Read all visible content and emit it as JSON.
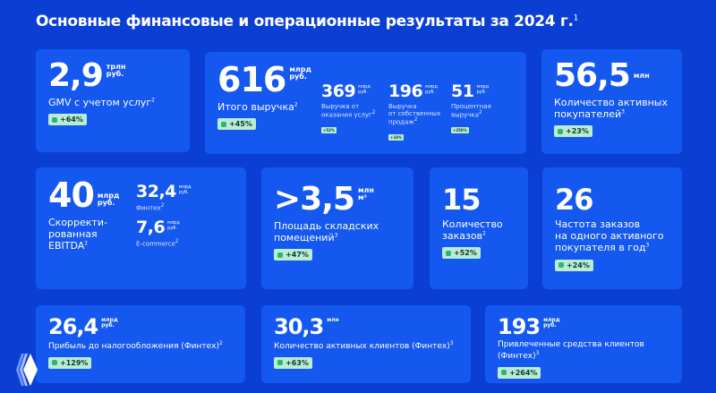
{
  "title": "Основные финансовые и операционные результаты за 2024 г.",
  "title_note": "1",
  "colors": {
    "background": "#0b3fd4",
    "card": "#1458f0",
    "badge": "#b9ecd4",
    "badge_icon": "#2fb56e"
  },
  "cards": [
    {
      "value": "2,9",
      "unit1": "трлн",
      "unit2": "руб.",
      "label": "GMV с учетом услуг",
      "note": "2",
      "badge": "+64%"
    },
    {
      "value": "616",
      "unit1": "млрд",
      "unit2": "руб.",
      "label": "Итого выручка",
      "note": "2",
      "badge": "+45%",
      "subs": [
        {
          "value": "369",
          "unit1": "млрд",
          "unit2": "руб.",
          "label1": "Выручка от",
          "label2": "оказания услуг",
          "note": "2",
          "badge": "+52%"
        },
        {
          "value": "196",
          "unit1": "млрд",
          "unit2": "руб.",
          "label1": "Выручка",
          "label2": "от собственных",
          "label3": "продаж",
          "note": "2",
          "badge": "+18%"
        },
        {
          "value": "51",
          "unit1": "млрд",
          "unit2": "руб.",
          "label1": "Процентная",
          "label2": "выручка",
          "note": "2",
          "badge": "+250%"
        }
      ]
    },
    {
      "value": "56,5",
      "unit1": "млн",
      "label1": "Количество активных",
      "label2": "покупателей",
      "note": "3",
      "badge": "+23%"
    },
    {
      "value": "40",
      "unit1": "млрд",
      "unit2": "руб.",
      "label1": "Скорректи-",
      "label2": "рованная",
      "label3": "EBITDA",
      "note": "2",
      "subs": [
        {
          "value": "32,4",
          "unit1": "млрд",
          "unit2": "руб.",
          "label1": "Финтех",
          "note": "2"
        },
        {
          "value": "7,6",
          "unit1": "млрд",
          "unit2": "руб.",
          "label1": "E-commerce",
          "note": "2"
        }
      ]
    },
    {
      "value": ">3,5",
      "unit1": "млн",
      "unit2": "м²",
      "label1": "Площадь складских",
      "label2": "помещений",
      "note": "3",
      "badge": "+47%"
    },
    {
      "value": "15",
      "label1": "Количество",
      "label2": "заказов",
      "note": "2",
      "badge": "+52%"
    },
    {
      "value": "26",
      "label1": "Частота заказов",
      "label2": "на одного активного",
      "label3": "покупателя в год",
      "note": "3",
      "badge": "+24%"
    },
    {
      "value": "26,4",
      "unit1": "млрд",
      "unit2": "руб.",
      "label": "Прибыль до налогообложения (Финтех)",
      "note": "2",
      "badge": "+129%"
    },
    {
      "value": "30,3",
      "unit1": "млн",
      "label": "Количество активных клиентов (Финтех)",
      "note": "3",
      "badge": "+63%"
    },
    {
      "value": "193",
      "unit1": "млрд",
      "unit2": "руб.",
      "label": "Привлеченные средства клиентов (Финтех)",
      "note": "3",
      "badge": "+264%"
    }
  ]
}
